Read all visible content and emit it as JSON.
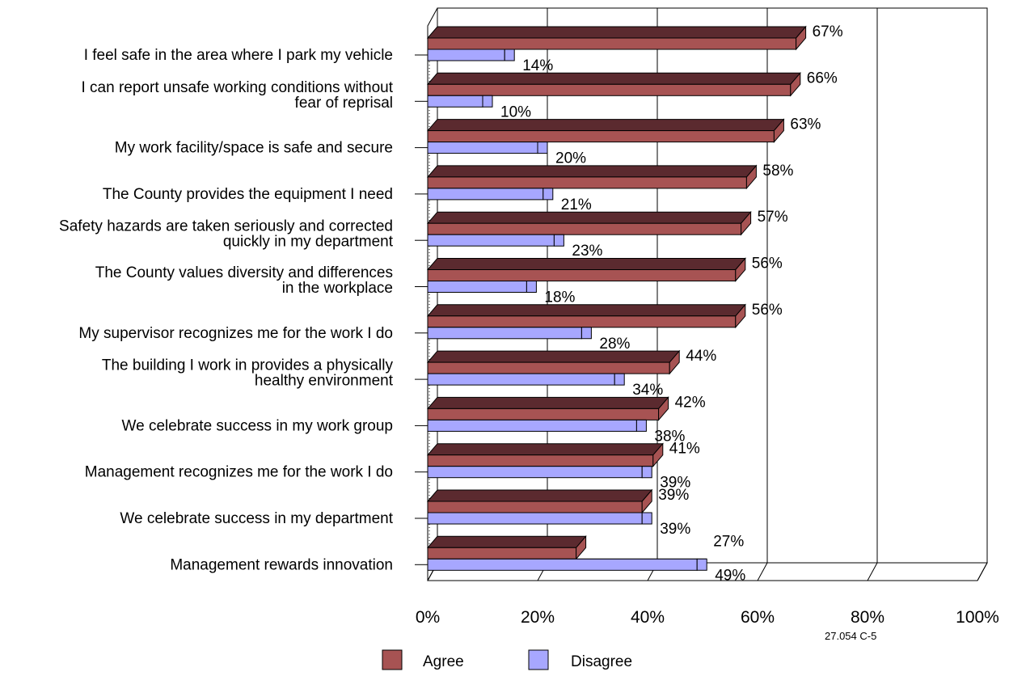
{
  "chart_data": {
    "type": "bar",
    "orientation": "horizontal",
    "three_d": true,
    "categories": [
      [
        "I feel safe in the area where I park my vehicle"
      ],
      [
        "I can report unsafe working conditions without",
        "fear of reprisal"
      ],
      [
        "My work facility/space is safe and secure"
      ],
      [
        "The County provides the equipment I need"
      ],
      [
        "Safety hazards are taken seriously and corrected",
        "quickly in my department"
      ],
      [
        "The County values diversity and differences",
        "in the workplace"
      ],
      [
        "My supervisor recognizes me for the work I do"
      ],
      [
        "The building I work in provides a physically",
        "healthy environment"
      ],
      [
        "We celebrate success in my work group"
      ],
      [
        "Management recognizes me for the work I do"
      ],
      [
        "We celebrate success in my department"
      ],
      [
        "Management rewards innovation"
      ]
    ],
    "series": [
      {
        "name": "Agree",
        "color": "#a75353",
        "top_color": "#5b2a2f",
        "values": [
          67,
          66,
          63,
          58,
          57,
          56,
          56,
          44,
          42,
          41,
          39,
          27
        ],
        "labels": [
          "67%",
          "66%",
          "63%",
          "58%",
          "57%",
          "56%",
          "56%",
          "44%",
          "42%",
          "41%",
          "39%",
          "27%"
        ]
      },
      {
        "name": "Disagree",
        "color": "#a7a7ff",
        "top_color": "#545478",
        "values": [
          14,
          10,
          20,
          21,
          23,
          18,
          28,
          34,
          38,
          39,
          39,
          49
        ],
        "labels": [
          "14%",
          "10%",
          "20%",
          "21%",
          "23%",
          "18%",
          "28%",
          "34%",
          "38%",
          "39%",
          "39%",
          "49%"
        ]
      }
    ],
    "x_ticks": [
      "0%",
      "20%",
      "40%",
      "60%",
      "80%",
      "100%"
    ],
    "xlim": [
      0,
      100
    ],
    "grid": true,
    "legend_position": "bottom"
  },
  "footnote": "27.054 C-5"
}
